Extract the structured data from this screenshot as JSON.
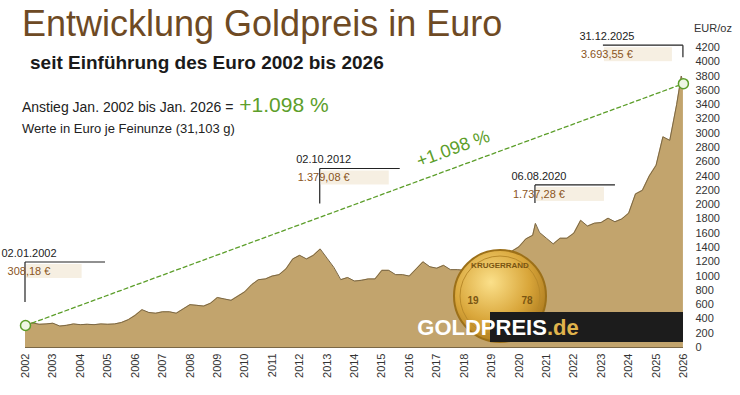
{
  "chart_data": {
    "type": "area",
    "title": "Entwicklung Goldpreis in Euro",
    "subtitle": "seit Einführung des Euro 2002 bis 2026",
    "increase_text": "Anstieg Jan. 2002 bis Jan. 2026 =",
    "increase_value": "+1.098 %",
    "note": "Werte in Euro je Feinunze (31,103 g)",
    "ylabel": "EUR/oz",
    "color": "#c2a46d",
    "grid": false,
    "x": [
      2002,
      2002.25,
      2002.5,
      2002.75,
      2003,
      2003.25,
      2003.5,
      2003.75,
      2004,
      2004.25,
      2004.5,
      2004.75,
      2005,
      2005.25,
      2005.5,
      2005.75,
      2006,
      2006.25,
      2006.5,
      2006.75,
      2007,
      2007.25,
      2007.5,
      2007.75,
      2008,
      2008.25,
      2008.5,
      2008.75,
      2009,
      2009.25,
      2009.5,
      2009.75,
      2010,
      2010.25,
      2010.5,
      2010.75,
      2011,
      2011.25,
      2011.5,
      2011.75,
      2012,
      2012.25,
      2012.5,
      2012.75,
      2013,
      2013.25,
      2013.5,
      2013.75,
      2014,
      2014.25,
      2014.5,
      2014.75,
      2015,
      2015.25,
      2015.5,
      2015.75,
      2016,
      2016.25,
      2016.5,
      2016.75,
      2017,
      2017.25,
      2017.5,
      2017.75,
      2018,
      2018.25,
      2018.5,
      2018.75,
      2019,
      2019.25,
      2019.5,
      2019.75,
      2020,
      2020.25,
      2020.5,
      2020.6,
      2020.75,
      2021,
      2021.25,
      2021.5,
      2021.75,
      2022,
      2022.25,
      2022.5,
      2022.75,
      2023,
      2023.25,
      2023.5,
      2023.75,
      2024,
      2024.25,
      2024.5,
      2024.75,
      2025,
      2025.25,
      2025.5,
      2025.75,
      2025.92,
      2025.997
    ],
    "values": [
      308.18,
      345,
      325,
      330,
      340,
      300,
      310,
      330,
      320,
      325,
      320,
      330,
      325,
      330,
      350,
      390,
      450,
      530,
      490,
      480,
      500,
      500,
      480,
      540,
      600,
      590,
      580,
      620,
      700,
      680,
      660,
      720,
      780,
      880,
      950,
      960,
      1000,
      1020,
      1100,
      1240,
      1290,
      1240,
      1290,
      1379.08,
      1250,
      1120,
      950,
      980,
      930,
      940,
      960,
      960,
      1080,
      1080,
      1020,
      1020,
      1000,
      1100,
      1200,
      1130,
      1110,
      1150,
      1090,
      1090,
      1080,
      1070,
      1090,
      1060,
      1130,
      1150,
      1260,
      1350,
      1410,
      1520,
      1570,
      1737.28,
      1610,
      1530,
      1450,
      1530,
      1530,
      1600,
      1780,
      1700,
      1740,
      1750,
      1810,
      1760,
      1800,
      1880,
      2150,
      2200,
      2400,
      2550,
      2950,
      2900,
      3400,
      3800,
      3693.55
    ],
    "xlim": [
      2002,
      2026
    ],
    "xticks": [
      2002,
      2003,
      2004,
      2005,
      2006,
      2007,
      2008,
      2009,
      2010,
      2011,
      2012,
      2013,
      2014,
      2015,
      2016,
      2017,
      2018,
      2019,
      2020,
      2021,
      2022,
      2023,
      2024,
      2025,
      2026
    ],
    "ylim": [
      0,
      4200
    ],
    "yticks": [
      0,
      200,
      400,
      600,
      800,
      1000,
      1200,
      1400,
      1600,
      1800,
      2000,
      2200,
      2400,
      2600,
      2800,
      3000,
      3200,
      3400,
      3600,
      3800,
      4000,
      4200
    ],
    "annotations": [
      {
        "x": 2002,
        "value": 308.18,
        "date": "02.01.2002",
        "label": "308,18 €"
      },
      {
        "x": 2012.75,
        "value": 1379.08,
        "date": "02.10.2012",
        "label": "1.379,08 €"
      },
      {
        "x": 2020.6,
        "value": 1737.28,
        "date": "06.08.2020",
        "label": "1.737,28 €"
      },
      {
        "x": 2025.997,
        "value": 3693.55,
        "date": "31.12.2025",
        "label": "3.693,55 €"
      }
    ],
    "trend_label": "+1.098 %",
    "logo": "GOLDPREIS.de",
    "coin": [
      "KRUGERRAND",
      "19",
      "78"
    ]
  }
}
